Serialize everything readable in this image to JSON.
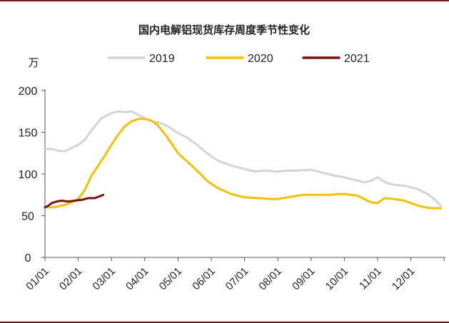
{
  "chart_data": {
    "type": "line",
    "title": "国内电解铝现货库存周度季节性变化",
    "unit_label": "万",
    "ylim": [
      0,
      200
    ],
    "yticks": [
      0,
      50,
      100,
      150,
      200
    ],
    "xlim": [
      0,
      12
    ],
    "categories": [
      "01/01",
      "02/01",
      "03/01",
      "04/01",
      "05/01",
      "06/01",
      "07/01",
      "08/01",
      "09/01",
      "10/01",
      "11/01",
      "12/01"
    ],
    "legend_position": "top",
    "series": [
      {
        "name": "2019",
        "color": "#d4d4d4",
        "x": [
          0,
          0.2,
          0.4,
          0.6,
          0.8,
          1.0,
          1.2,
          1.45,
          1.7,
          2.0,
          2.2,
          2.4,
          2.6,
          2.8,
          3.0,
          3.2,
          3.4,
          3.7,
          4.0,
          4.3,
          4.6,
          4.9,
          5.2,
          5.6,
          6.0,
          6.3,
          6.6,
          7.0,
          7.3,
          7.6,
          8.0,
          8.4,
          8.7,
          9.0,
          9.3,
          9.6,
          9.8,
          10.0,
          10.15,
          10.3,
          10.5,
          10.8,
          11.0,
          11.2,
          11.5,
          11.7,
          11.9
        ],
        "values": [
          130,
          130,
          128,
          127,
          131,
          135,
          141,
          155,
          167,
          173,
          175,
          174,
          175,
          171,
          167,
          163,
          162,
          157,
          149,
          143,
          134,
          124,
          116,
          110,
          106,
          103,
          104,
          103,
          104,
          104,
          105,
          101,
          98,
          96,
          93,
          90,
          92,
          96,
          92,
          89,
          87,
          86,
          84,
          82,
          76,
          70,
          62
        ]
      },
      {
        "name": "2020",
        "color": "#f5c000",
        "x": [
          0,
          0.2,
          0.4,
          0.6,
          0.8,
          1.0,
          1.2,
          1.4,
          1.6,
          1.8,
          2.0,
          2.2,
          2.4,
          2.6,
          2.8,
          3.0,
          3.2,
          3.4,
          3.6,
          3.8,
          4.0,
          4.3,
          4.6,
          4.9,
          5.2,
          5.6,
          6.0,
          6.4,
          6.8,
          7.0,
          7.3,
          7.6,
          7.8,
          8.0,
          8.3,
          8.6,
          8.8,
          9.0,
          9.2,
          9.4,
          9.6,
          9.8,
          10.0,
          10.2,
          10.5,
          10.8,
          11.0,
          11.3,
          11.6,
          11.9
        ],
        "values": [
          60,
          60,
          61,
          63,
          66,
          70,
          81,
          98,
          110,
          122,
          135,
          147,
          157,
          163,
          166,
          166,
          164,
          158,
          148,
          137,
          125,
          114,
          103,
          91,
          83,
          76,
          72,
          71,
          70,
          70,
          72,
          74,
          75,
          75,
          75,
          75,
          76,
          76,
          75,
          74,
          70,
          66,
          65,
          71,
          70,
          68,
          65,
          61,
          59,
          59
        ]
      },
      {
        "name": "2021",
        "color": "#7a1313",
        "x": [
          0,
          0.1,
          0.2,
          0.35,
          0.5,
          0.7,
          0.9,
          1.1,
          1.3,
          1.5,
          1.75
        ],
        "values": [
          60,
          62,
          65,
          67,
          68,
          67,
          68,
          69,
          71,
          71,
          75
        ]
      }
    ]
  }
}
